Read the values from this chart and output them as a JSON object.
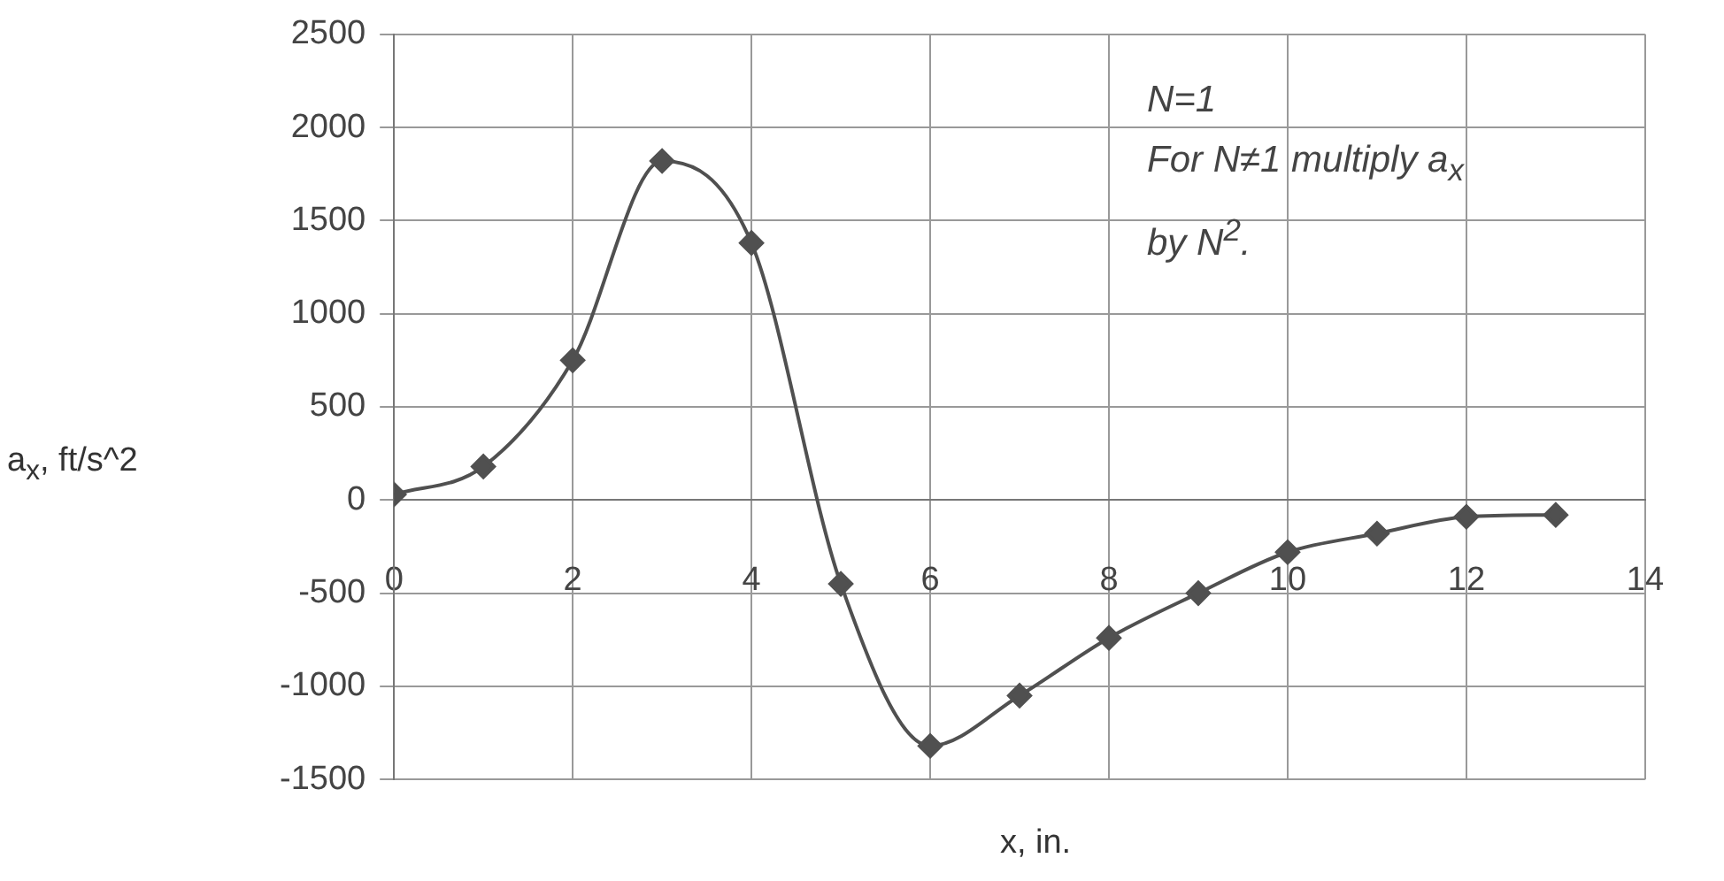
{
  "chart_data": {
    "type": "line",
    "xlabel": "x, in.",
    "ylabel": "a$_{x}$, ft/s^2",
    "x": [
      0,
      1,
      2,
      3,
      4,
      5,
      6,
      7,
      8,
      9,
      10,
      11,
      12,
      13
    ],
    "series": [
      {
        "color": "#505050",
        "values": [
          30,
          180,
          750,
          1820,
          1380,
          -450,
          -1320,
          -1050,
          -740,
          -500,
          -280,
          -180,
          -90,
          -80
        ]
      }
    ],
    "xlim": [
      0,
      14
    ],
    "xticks": [
      0,
      2,
      4,
      6,
      8,
      10,
      12,
      14
    ],
    "ylim": [
      -1500,
      2500
    ],
    "yticks": [
      -1500,
      -1000,
      -500,
      0,
      500,
      1000,
      1500,
      2000,
      2500
    ],
    "grid": true,
    "marker": "diamond",
    "line_style": "solid",
    "legend": false,
    "annotations": [
      "N=1",
      "For N≠1 multiply a$_{x}$",
      "by N$^{2}$."
    ]
  }
}
